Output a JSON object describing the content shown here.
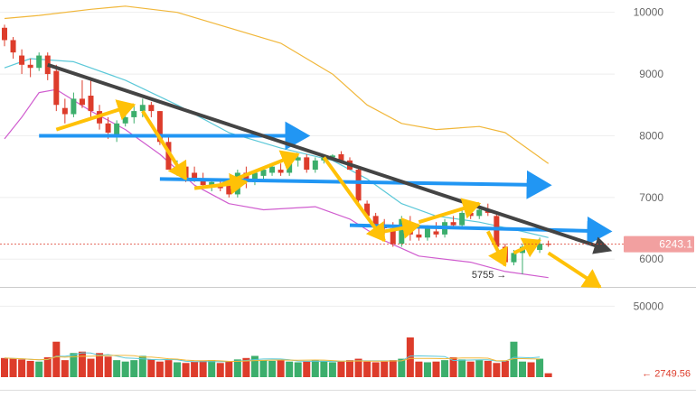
{
  "chart_data": {
    "type": "candlestick",
    "price_axis": {
      "ticks": [
        10000,
        9000,
        8000,
        7000,
        6000
      ],
      "tick_labels": [
        "10000",
        "9000",
        "8000",
        "7000",
        "6000"
      ],
      "ylim": [
        5550,
        10200
      ]
    },
    "volume_axis": {
      "ticks": [
        50000
      ],
      "tick_labels": [
        "50000"
      ],
      "ylim": [
        0,
        56000
      ]
    },
    "current_price": {
      "value": 6243.1,
      "label": "6243.1"
    },
    "low_marker": {
      "value": 5755,
      "label": "5755 →"
    },
    "volume_marker": {
      "value": 2749.56,
      "label": "← 2749.56"
    },
    "candles": [
      {
        "o": 9750,
        "h": 9800,
        "l": 9450,
        "c": 9550
      },
      {
        "o": 9550,
        "h": 9600,
        "l": 9250,
        "c": 9350
      },
      {
        "o": 9300,
        "h": 9400,
        "l": 9000,
        "c": 9150
      },
      {
        "o": 9150,
        "h": 9250,
        "l": 8950,
        "c": 9100
      },
      {
        "o": 9100,
        "h": 9350,
        "l": 9050,
        "c": 9300
      },
      {
        "o": 9300,
        "h": 9350,
        "l": 8900,
        "c": 9000
      },
      {
        "o": 9050,
        "h": 9150,
        "l": 8400,
        "c": 8500
      },
      {
        "o": 8450,
        "h": 8600,
        "l": 8200,
        "c": 8350
      },
      {
        "o": 8350,
        "h": 8700,
        "l": 8300,
        "c": 8600
      },
      {
        "o": 8600,
        "h": 8900,
        "l": 8450,
        "c": 8500
      },
      {
        "o": 8650,
        "h": 8950,
        "l": 8300,
        "c": 8400
      },
      {
        "o": 8400,
        "h": 8500,
        "l": 8100,
        "c": 8200
      },
      {
        "o": 8200,
        "h": 8300,
        "l": 7950,
        "c": 8050
      },
      {
        "o": 8000,
        "h": 8250,
        "l": 7900,
        "c": 8200
      },
      {
        "o": 8200,
        "h": 8400,
        "l": 8150,
        "c": 8300
      },
      {
        "o": 8300,
        "h": 8500,
        "l": 8200,
        "c": 8400
      },
      {
        "o": 8400,
        "h": 8600,
        "l": 8300,
        "c": 8500
      },
      {
        "o": 8500,
        "h": 8550,
        "l": 8300,
        "c": 8400
      },
      {
        "o": 8400,
        "h": 8400,
        "l": 7850,
        "c": 7900
      },
      {
        "o": 7900,
        "h": 8000,
        "l": 7450,
        "c": 7450
      },
      {
        "o": 7450,
        "h": 7600,
        "l": 7350,
        "c": 7500
      },
      {
        "o": 7500,
        "h": 7550,
        "l": 7250,
        "c": 7300
      },
      {
        "o": 7400,
        "h": 7500,
        "l": 7250,
        "c": 7300
      },
      {
        "o": 7300,
        "h": 7400,
        "l": 7150,
        "c": 7200
      },
      {
        "o": 7200,
        "h": 7300,
        "l": 7100,
        "c": 7250
      },
      {
        "o": 7200,
        "h": 7300,
        "l": 7100,
        "c": 7150
      },
      {
        "o": 7200,
        "h": 7250,
        "l": 7000,
        "c": 7050
      },
      {
        "o": 7050,
        "h": 7450,
        "l": 7000,
        "c": 7400
      },
      {
        "o": 7400,
        "h": 7500,
        "l": 7150,
        "c": 7250
      },
      {
        "o": 7250,
        "h": 7450,
        "l": 7200,
        "c": 7400
      },
      {
        "o": 7350,
        "h": 7500,
        "l": 7300,
        "c": 7450
      },
      {
        "o": 7400,
        "h": 7550,
        "l": 7350,
        "c": 7500
      },
      {
        "o": 7450,
        "h": 7550,
        "l": 7350,
        "c": 7400
      },
      {
        "o": 7400,
        "h": 7650,
        "l": 7350,
        "c": 7600
      },
      {
        "o": 7600,
        "h": 7700,
        "l": 7500,
        "c": 7650
      },
      {
        "o": 7650,
        "h": 7700,
        "l": 7400,
        "c": 7450
      },
      {
        "o": 7450,
        "h": 7650,
        "l": 7400,
        "c": 7600
      },
      {
        "o": 7600,
        "h": 7700,
        "l": 7550,
        "c": 7650
      },
      {
        "o": 7650,
        "h": 7700,
        "l": 7600,
        "c": 7680
      },
      {
        "o": 7700,
        "h": 7750,
        "l": 7550,
        "c": 7600
      },
      {
        "o": 7600,
        "h": 7650,
        "l": 7450,
        "c": 7450
      },
      {
        "o": 7450,
        "h": 7500,
        "l": 6900,
        "c": 6950
      },
      {
        "o": 6900,
        "h": 6950,
        "l": 6650,
        "c": 6700
      },
      {
        "o": 6700,
        "h": 6750,
        "l": 6500,
        "c": 6550
      },
      {
        "o": 6550,
        "h": 6650,
        "l": 6400,
        "c": 6500
      },
      {
        "o": 6500,
        "h": 6600,
        "l": 6200,
        "c": 6250
      },
      {
        "o": 6250,
        "h": 6700,
        "l": 6200,
        "c": 6650
      },
      {
        "o": 6600,
        "h": 6700,
        "l": 6300,
        "c": 6400
      },
      {
        "o": 6400,
        "h": 6500,
        "l": 6300,
        "c": 6350
      },
      {
        "o": 6350,
        "h": 6550,
        "l": 6300,
        "c": 6500
      },
      {
        "o": 6450,
        "h": 6600,
        "l": 6350,
        "c": 6400
      },
      {
        "o": 6400,
        "h": 6650,
        "l": 6350,
        "c": 6600
      },
      {
        "o": 6600,
        "h": 6700,
        "l": 6500,
        "c": 6550
      },
      {
        "o": 6550,
        "h": 6800,
        "l": 6500,
        "c": 6750
      },
      {
        "o": 6750,
        "h": 6800,
        "l": 6650,
        "c": 6700
      },
      {
        "o": 6700,
        "h": 6900,
        "l": 6650,
        "c": 6800
      },
      {
        "o": 6800,
        "h": 6900,
        "l": 6700,
        "c": 6750
      },
      {
        "o": 6700,
        "h": 6750,
        "l": 6150,
        "c": 6200
      },
      {
        "o": 6200,
        "h": 6250,
        "l": 5900,
        "c": 5950
      },
      {
        "o": 5950,
        "h": 6150,
        "l": 5900,
        "c": 6100
      },
      {
        "o": 6100,
        "h": 6250,
        "l": 5755,
        "c": 6200
      },
      {
        "o": 6200,
        "h": 6300,
        "l": 6100,
        "c": 6150
      },
      {
        "o": 6150,
        "h": 6350,
        "l": 6100,
        "c": 6250
      },
      {
        "o": 6250,
        "h": 6300,
        "l": 6200,
        "c": 6243.1
      }
    ],
    "volumes": [
      13500,
      13000,
      12500,
      11500,
      11000,
      14000,
      25000,
      12000,
      17000,
      18000,
      13000,
      17000,
      14500,
      12000,
      11000,
      12000,
      15000,
      12500,
      11000,
      12000,
      10500,
      10000,
      11000,
      11500,
      12000,
      10000,
      11000,
      12500,
      13500,
      15000,
      12000,
      11500,
      12000,
      11000,
      10500,
      11000,
      12000,
      11500,
      10500,
      11000,
      12000,
      13000,
      11000,
      10500,
      11000,
      12000,
      13000,
      28000,
      11000,
      10500,
      11000,
      12000,
      14000,
      12500,
      11000,
      12000,
      11500,
      10000,
      11500,
      25000,
      11000,
      10500,
      13000,
      2749.56
    ],
    "moving_averages": {
      "upper_band": [
        {
          "i": 0,
          "v": 9900
        },
        {
          "i": 4,
          "v": 9950
        },
        {
          "i": 10,
          "v": 10050
        },
        {
          "i": 14,
          "v": 10100
        },
        {
          "i": 20,
          "v": 10000
        },
        {
          "i": 26,
          "v": 9750
        },
        {
          "i": 32,
          "v": 9500
        },
        {
          "i": 38,
          "v": 9000
        },
        {
          "i": 42,
          "v": 8500
        },
        {
          "i": 46,
          "v": 8200
        },
        {
          "i": 50,
          "v": 8100
        },
        {
          "i": 55,
          "v": 8150
        },
        {
          "i": 58,
          "v": 8050
        },
        {
          "i": 63,
          "v": 7550
        }
      ],
      "middle_band": [
        {
          "i": 0,
          "v": 9100
        },
        {
          "i": 3,
          "v": 9250
        },
        {
          "i": 8,
          "v": 9200
        },
        {
          "i": 14,
          "v": 8900
        },
        {
          "i": 20,
          "v": 8500
        },
        {
          "i": 26,
          "v": 8050
        },
        {
          "i": 32,
          "v": 7800
        },
        {
          "i": 38,
          "v": 7600
        },
        {
          "i": 42,
          "v": 7300
        },
        {
          "i": 46,
          "v": 6900
        },
        {
          "i": 50,
          "v": 6700
        },
        {
          "i": 55,
          "v": 6600
        },
        {
          "i": 60,
          "v": 6450
        },
        {
          "i": 63,
          "v": 6350
        }
      ],
      "lower_band": [
        {
          "i": 0,
          "v": 7950
        },
        {
          "i": 2,
          "v": 8300
        },
        {
          "i": 4,
          "v": 8700
        },
        {
          "i": 6,
          "v": 8750
        },
        {
          "i": 10,
          "v": 8400
        },
        {
          "i": 14,
          "v": 8100
        },
        {
          "i": 18,
          "v": 7700
        },
        {
          "i": 22,
          "v": 7200
        },
        {
          "i": 26,
          "v": 6900
        },
        {
          "i": 30,
          "v": 6800
        },
        {
          "i": 36,
          "v": 6850
        },
        {
          "i": 40,
          "v": 6650
        },
        {
          "i": 44,
          "v": 6300
        },
        {
          "i": 48,
          "v": 6050
        },
        {
          "i": 54,
          "v": 5950
        },
        {
          "i": 58,
          "v": 5800
        },
        {
          "i": 63,
          "v": 5700
        }
      ]
    },
    "colors": {
      "bull": "#3cae6c",
      "bear": "#dd3c2b",
      "upper_band": "#f1b73a",
      "middle_band": "#5bc8d8",
      "lower_band": "#d05dcf",
      "trendline": "#444444",
      "support_arrow": "#2196f3",
      "wave_arrow": "#ffc107",
      "price_tag": "#f2a0a0",
      "axis_text": "#666666",
      "grid": "#eeeeee"
    },
    "annotations": {
      "trendline": {
        "from": {
          "i": 5,
          "v": 9150
        },
        "to": {
          "i": 70,
          "v": 6150
        }
      },
      "horizontal_arrows": [
        {
          "from": {
            "i": 4,
            "v": 8000
          },
          "to": {
            "i": 35,
            "v": 8000
          }
        },
        {
          "from": {
            "i": 18,
            "v": 7300
          },
          "to": {
            "i": 63,
            "v": 7200
          }
        },
        {
          "from": {
            "i": 40,
            "v": 6550
          },
          "to": {
            "i": 70,
            "v": 6450
          }
        }
      ],
      "wave_arrows": [
        {
          "from": {
            "i": 6,
            "v": 8100
          },
          "to": {
            "i": 15,
            "v": 8500
          }
        },
        {
          "from": {
            "i": 16,
            "v": 8400
          },
          "to": {
            "i": 21,
            "v": 7300
          }
        },
        {
          "from": {
            "i": 22,
            "v": 7150
          },
          "to": {
            "i": 28,
            "v": 7250
          }
        },
        {
          "from": {
            "i": 25,
            "v": 7200
          },
          "to": {
            "i": 34,
            "v": 7700
          }
        },
        {
          "from": {
            "i": 37,
            "v": 7650
          },
          "to": {
            "i": 44,
            "v": 6300
          }
        },
        {
          "from": {
            "i": 44,
            "v": 6450
          },
          "to": {
            "i": 48,
            "v": 6550
          }
        },
        {
          "from": {
            "i": 48,
            "v": 6600
          },
          "to": {
            "i": 55,
            "v": 6900
          }
        },
        {
          "from": {
            "i": 56,
            "v": 6450
          },
          "to": {
            "i": 58,
            "v": 5900
          }
        },
        {
          "from": {
            "i": 59,
            "v": 6100
          },
          "to": {
            "i": 62,
            "v": 6300
          }
        },
        {
          "from": {
            "i": 63,
            "v": 6100
          },
          "to": {
            "i": 69,
            "v": 5550
          }
        }
      ]
    }
  }
}
